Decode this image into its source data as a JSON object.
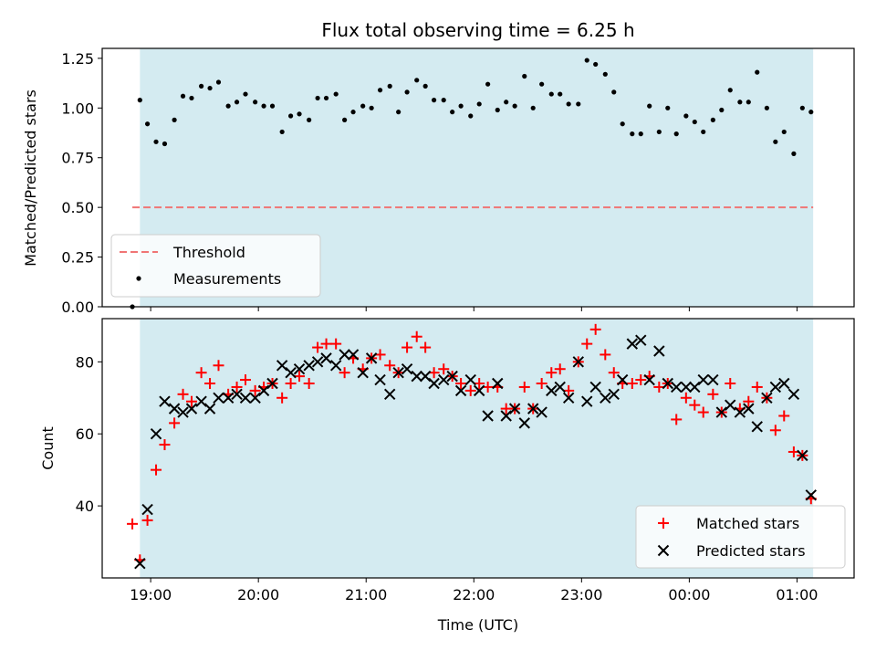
{
  "title": "Flux total observing time = 6.25 h",
  "colors": {
    "shade": "#d4ebf1",
    "measurement": "#000000",
    "threshold": "#f07575",
    "matched": "#ff0000",
    "predicted": "#000000"
  },
  "chart_data": [
    {
      "type": "scatter",
      "panel": "top",
      "ylabel": "Matched/Predicted stars",
      "ylim": [
        0,
        1.3
      ],
      "yticks": [
        0,
        0.25,
        0.5,
        0.75,
        1.0,
        1.25
      ],
      "ytick_labels": [
        "0.00",
        "0.25",
        "0.50",
        "0.75",
        "1.00",
        "1.25"
      ],
      "x_range_hours": [
        18.55,
        25.53
      ],
      "shaded_span_hours": [
        18.9,
        25.15
      ],
      "threshold": {
        "name": "Threshold",
        "value": 0.5,
        "x_range_hours": [
          18.83,
          25.15
        ]
      },
      "legend": {
        "position": "lower-left",
        "entries": [
          "Threshold",
          "Measurements"
        ]
      },
      "series": [
        {
          "name": "Measurements",
          "marker": "dot",
          "x": [
            18.83,
            18.9,
            18.97,
            19.05,
            19.13,
            19.22,
            19.3,
            19.38,
            19.47,
            19.55,
            19.63,
            19.72,
            19.8,
            19.88,
            19.97,
            20.05,
            20.13,
            20.22,
            20.3,
            20.38,
            20.47,
            20.55,
            20.63,
            20.72,
            20.8,
            20.88,
            20.97,
            21.05,
            21.13,
            21.22,
            21.3,
            21.38,
            21.47,
            21.55,
            21.63,
            21.72,
            21.8,
            21.88,
            21.97,
            22.05,
            22.13,
            22.22,
            22.3,
            22.38,
            22.47,
            22.55,
            22.63,
            22.72,
            22.8,
            22.88,
            22.97,
            23.05,
            23.13,
            23.22,
            23.3,
            23.38,
            23.47,
            23.55,
            23.63,
            23.72,
            23.8,
            23.88,
            23.97,
            24.05,
            24.13,
            24.22,
            24.3,
            24.38,
            24.47,
            24.55,
            24.63,
            24.72,
            24.8,
            24.88,
            24.97,
            25.05,
            25.13
          ],
          "y": [
            0.0,
            1.04,
            0.92,
            0.83,
            0.82,
            0.94,
            1.06,
            1.05,
            1.11,
            1.1,
            1.13,
            1.01,
            1.03,
            1.07,
            1.03,
            1.01,
            1.01,
            0.88,
            0.96,
            0.97,
            0.94,
            1.05,
            1.05,
            1.07,
            0.94,
            0.98,
            1.01,
            1.0,
            1.09,
            1.11,
            0.98,
            1.08,
            1.14,
            1.11,
            1.04,
            1.04,
            0.98,
            1.01,
            0.96,
            1.02,
            1.12,
            0.99,
            1.03,
            1.01,
            1.16,
            1.0,
            1.12,
            1.07,
            1.07,
            1.02,
            1.02,
            1.24,
            1.22,
            1.17,
            1.08,
            0.92,
            0.87,
            0.87,
            1.01,
            0.88,
            1.0,
            0.87,
            0.96,
            0.93,
            0.88,
            0.94,
            0.99,
            1.09,
            1.03,
            1.03,
            1.18,
            1.0,
            0.83,
            0.88,
            0.77,
            1.0,
            0.98
          ]
        }
      ]
    },
    {
      "type": "scatter",
      "panel": "bottom",
      "xlabel": "Time (UTC)",
      "ylabel": "Count",
      "ylim": [
        20,
        92
      ],
      "yticks": [
        40,
        60,
        80
      ],
      "ytick_labels": [
        "40",
        "60",
        "80"
      ],
      "x_range_hours": [
        18.55,
        25.53
      ],
      "shaded_span_hours": [
        18.9,
        25.15
      ],
      "xticks_hours": [
        19,
        20,
        21,
        22,
        23,
        24,
        25
      ],
      "xtick_labels": [
        "19:00",
        "20:00",
        "21:00",
        "22:00",
        "23:00",
        "00:00",
        "01:00"
      ],
      "legend": {
        "position": "lower-right",
        "entries": [
          "Matched stars",
          "Predicted stars"
        ]
      },
      "series": [
        {
          "name": "Matched stars",
          "marker": "plus",
          "x": [
            18.83,
            18.9,
            18.97,
            19.05,
            19.13,
            19.22,
            19.3,
            19.38,
            19.47,
            19.55,
            19.63,
            19.72,
            19.8,
            19.88,
            19.97,
            20.05,
            20.13,
            20.22,
            20.3,
            20.38,
            20.47,
            20.55,
            20.63,
            20.72,
            20.8,
            20.88,
            20.97,
            21.05,
            21.13,
            21.22,
            21.3,
            21.38,
            21.47,
            21.55,
            21.63,
            21.72,
            21.8,
            21.88,
            21.97,
            22.05,
            22.13,
            22.22,
            22.3,
            22.38,
            22.47,
            22.55,
            22.63,
            22.72,
            22.8,
            22.88,
            22.97,
            23.05,
            23.13,
            23.22,
            23.3,
            23.38,
            23.47,
            23.55,
            23.63,
            23.72,
            23.8,
            23.88,
            23.97,
            24.05,
            24.13,
            24.22,
            24.3,
            24.38,
            24.47,
            24.55,
            24.63,
            24.72,
            24.8,
            24.88,
            24.97,
            25.05,
            25.13
          ],
          "y": [
            35,
            25,
            36,
            50,
            57,
            63,
            71,
            69,
            77,
            74,
            79,
            71,
            73,
            75,
            72,
            73,
            74,
            70,
            74,
            76,
            74,
            84,
            85,
            85,
            77,
            81,
            78,
            81,
            82,
            79,
            77,
            84,
            87,
            84,
            77,
            78,
            76,
            74,
            72,
            74,
            73,
            73,
            67,
            67,
            73,
            67,
            74,
            77,
            78,
            72,
            80,
            85,
            89,
            82,
            77,
            74,
            74,
            75,
            76,
            73,
            74,
            64,
            70,
            68,
            66,
            71,
            66,
            74,
            67,
            69,
            73,
            70,
            61,
            65,
            55,
            54,
            42
          ]
        },
        {
          "name": "Predicted stars",
          "marker": "x",
          "x": [
            18.9,
            18.97,
            19.05,
            19.13,
            19.22,
            19.3,
            19.38,
            19.47,
            19.55,
            19.63,
            19.72,
            19.8,
            19.88,
            19.97,
            20.05,
            20.13,
            20.22,
            20.3,
            20.38,
            20.47,
            20.55,
            20.63,
            20.72,
            20.8,
            20.88,
            20.97,
            21.05,
            21.13,
            21.22,
            21.3,
            21.38,
            21.47,
            21.55,
            21.63,
            21.72,
            21.8,
            21.88,
            21.97,
            22.05,
            22.13,
            22.22,
            22.3,
            22.38,
            22.47,
            22.55,
            22.63,
            22.72,
            22.8,
            22.88,
            22.97,
            23.05,
            23.13,
            23.22,
            23.3,
            23.38,
            23.47,
            23.55,
            23.63,
            23.72,
            23.8,
            23.88,
            23.97,
            24.05,
            24.13,
            24.22,
            24.3,
            24.38,
            24.47,
            24.55,
            24.63,
            24.72,
            24.8,
            24.88,
            24.97,
            25.05,
            25.13
          ],
          "y": [
            24,
            39,
            60,
            69,
            67,
            66,
            67,
            69,
            67,
            70,
            70,
            71,
            70,
            70,
            72,
            74,
            79,
            77,
            78,
            79,
            80,
            81,
            79,
            82,
            82,
            77,
            81,
            75,
            71,
            77,
            78,
            76,
            76,
            74,
            75,
            76,
            72,
            75,
            72,
            65,
            74,
            65,
            67,
            63,
            67,
            66,
            72,
            73,
            70,
            80,
            69,
            73,
            70,
            71,
            75,
            85,
            86,
            75,
            83,
            74,
            73,
            73,
            73,
            75,
            75,
            66,
            68,
            66,
            67,
            62,
            70,
            73,
            74,
            71,
            54,
            43
          ]
        }
      ]
    }
  ]
}
